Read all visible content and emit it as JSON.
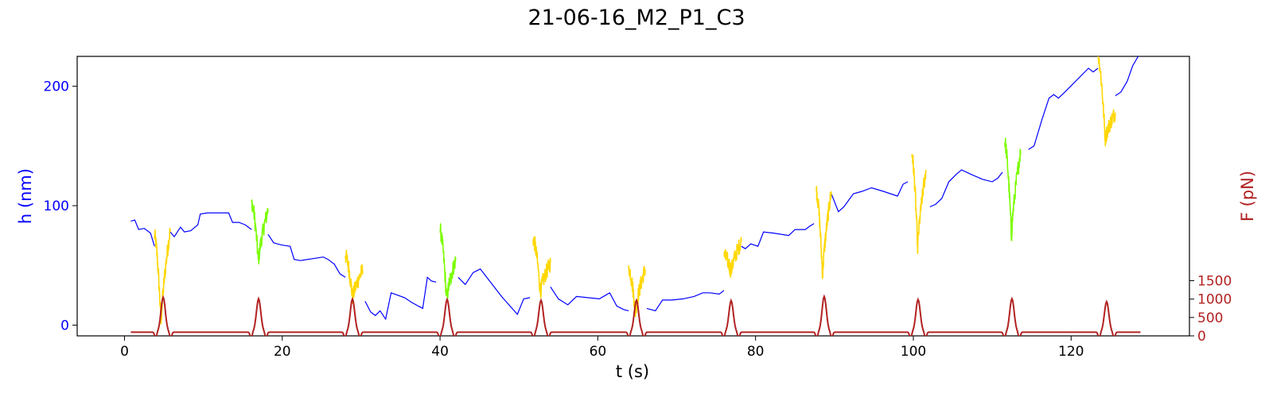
{
  "chart_data": {
    "type": "line",
    "title": "21-06-16_M2_P1_C3",
    "xlabel": "t (s)",
    "ylabel": "h (nm)",
    "y2label": "F (pN)",
    "xlim": [
      -6,
      135
    ],
    "ylim": [
      -9,
      225
    ],
    "y2lim": [
      0,
      7600
    ],
    "xticks": [
      0,
      20,
      40,
      60,
      80,
      100,
      120
    ],
    "yticks": [
      0,
      100,
      200
    ],
    "y2ticks": [
      0,
      500,
      1000,
      1500
    ],
    "grid": false,
    "colors": {
      "height_axis": "#0000ff",
      "force_axis": "#b22222",
      "baseline": "#0000ff",
      "yellow": "#ffd700",
      "green": "#7cfc00",
      "force": "#b22222"
    },
    "height_baseline": {
      "name": "h (nm)",
      "points": [
        [
          0.8,
          87
        ],
        [
          1.3,
          88
        ],
        [
          1.8,
          80
        ],
        [
          2.5,
          81
        ],
        [
          3.3,
          77
        ],
        [
          3.8,
          66
        ],
        [
          5.8,
          78
        ],
        [
          6.3,
          74
        ],
        [
          7.1,
          82
        ],
        [
          7.6,
          78
        ],
        [
          8.4,
          79
        ],
        [
          9.3,
          84
        ],
        [
          9.6,
          93
        ],
        [
          10.5,
          94
        ],
        [
          13.2,
          94
        ],
        [
          13.7,
          86
        ],
        [
          14.5,
          86
        ],
        [
          15.3,
          84
        ],
        [
          16.1,
          80
        ],
        [
          18.2,
          76
        ],
        [
          18.9,
          69
        ],
        [
          19.4,
          68
        ],
        [
          20.0,
          67
        ],
        [
          21.0,
          66
        ],
        [
          21.5,
          55
        ],
        [
          22.3,
          54
        ],
        [
          25.2,
          57
        ],
        [
          25.8,
          55
        ],
        [
          26.6,
          51
        ],
        [
          27.3,
          43
        ],
        [
          28.0,
          40
        ],
        [
          29.2,
          37
        ],
        [
          29.7,
          35
        ],
        [
          30.5,
          20
        ],
        [
          31.2,
          11
        ],
        [
          31.8,
          8
        ],
        [
          32.4,
          12
        ],
        [
          33.1,
          5
        ],
        [
          33.8,
          27
        ],
        [
          35.5,
          23
        ],
        [
          36.4,
          19
        ],
        [
          37.8,
          14
        ],
        [
          38.4,
          40
        ],
        [
          38.9,
          37
        ],
        [
          39.5,
          36
        ],
        [
          40.8,
          45
        ],
        [
          41.6,
          43
        ],
        [
          42.3,
          40
        ],
        [
          43.2,
          34
        ],
        [
          44.2,
          44
        ],
        [
          45.1,
          47
        ],
        [
          47.8,
          24
        ],
        [
          49.8,
          9
        ],
        [
          50.6,
          22
        ],
        [
          51.4,
          23
        ],
        [
          52.1,
          30
        ],
        [
          52.8,
          44
        ],
        [
          54.0,
          32
        ],
        [
          55.0,
          22
        ],
        [
          56.2,
          17
        ],
        [
          57.3,
          24
        ],
        [
          60.2,
          22
        ],
        [
          61.5,
          27
        ],
        [
          62.4,
          16
        ],
        [
          63.3,
          13
        ],
        [
          63.9,
          12
        ],
        [
          65.0,
          16
        ],
        [
          66.2,
          14
        ],
        [
          67.3,
          12
        ],
        [
          68.2,
          21
        ],
        [
          69.4,
          21
        ],
        [
          70.8,
          22
        ],
        [
          72.2,
          24
        ],
        [
          73.3,
          27
        ],
        [
          74.2,
          27
        ],
        [
          75.4,
          26
        ],
        [
          76.0,
          29
        ],
        [
          78.2,
          66
        ],
        [
          78.7,
          64
        ],
        [
          79.4,
          68
        ],
        [
          80.3,
          66
        ],
        [
          81.0,
          78
        ],
        [
          82.3,
          77
        ],
        [
          84.2,
          75
        ],
        [
          85.0,
          80
        ],
        [
          86.3,
          80
        ],
        [
          86.9,
          83
        ],
        [
          87.4,
          85
        ],
        [
          89.6,
          110
        ],
        [
          90.5,
          95
        ],
        [
          91.2,
          99
        ],
        [
          92.4,
          110
        ],
        [
          93.5,
          112
        ],
        [
          94.7,
          115
        ],
        [
          96.2,
          112
        ],
        [
          98.0,
          108
        ],
        [
          98.7,
          118
        ],
        [
          99.3,
          120
        ],
        [
          99.9,
          117
        ],
        [
          100.6,
          123
        ],
        [
          101.4,
          124
        ],
        [
          102.1,
          99
        ],
        [
          102.8,
          101
        ],
        [
          103.6,
          106
        ],
        [
          104.5,
          120
        ],
        [
          105.4,
          126
        ],
        [
          106.1,
          130
        ],
        [
          107.4,
          126
        ],
        [
          108.8,
          122
        ],
        [
          110.0,
          120
        ],
        [
          110.7,
          123
        ],
        [
          111.3,
          128
        ],
        [
          112.0,
          133
        ],
        [
          112.7,
          138
        ],
        [
          113.5,
          144
        ],
        [
          114.6,
          147
        ],
        [
          115.3,
          150
        ],
        [
          116.3,
          172
        ],
        [
          117.2,
          190
        ],
        [
          117.8,
          193
        ],
        [
          118.4,
          190
        ],
        [
          119.2,
          195
        ],
        [
          122.2,
          215
        ],
        [
          122.8,
          212
        ],
        [
          123.4,
          215
        ],
        [
          124.0,
          228
        ],
        [
          125.6,
          192
        ],
        [
          126.3,
          195
        ],
        [
          127.1,
          204
        ],
        [
          127.8,
          217
        ],
        [
          128.5,
          225
        ],
        [
          129.2,
          228
        ]
      ]
    },
    "colored_segments": [
      {
        "color": "yellow",
        "t_start": 3.8,
        "t_end": 5.8,
        "h_start": 75,
        "h_min": 0,
        "h_end": 80
      },
      {
        "color": "green",
        "t_start": 16.1,
        "t_end": 18.2,
        "h_start": 103,
        "h_min": 52,
        "h_end": 97
      },
      {
        "color": "yellow",
        "t_start": 28.0,
        "t_end": 30.2,
        "h_start": 58,
        "h_min": 22,
        "h_end": 46
      },
      {
        "color": "green",
        "t_start": 40.0,
        "t_end": 42.0,
        "h_start": 79,
        "h_min": 20,
        "h_end": 55
      },
      {
        "color": "yellow",
        "t_start": 51.8,
        "t_end": 54.0,
        "h_start": 72,
        "h_min": 27,
        "h_end": 52
      },
      {
        "color": "yellow",
        "t_start": 63.9,
        "t_end": 66.0,
        "h_start": 48,
        "h_min": 10,
        "h_end": 47
      },
      {
        "color": "yellow",
        "t_start": 76.0,
        "t_end": 78.2,
        "h_start": 58,
        "h_min": 45,
        "h_end": 70
      },
      {
        "color": "yellow",
        "t_start": 87.7,
        "t_end": 89.6,
        "h_start": 112,
        "h_min": 40,
        "h_end": 112
      },
      {
        "color": "yellow",
        "t_start": 99.8,
        "t_end": 101.6,
        "h_start": 143,
        "h_min": 63,
        "h_end": 130
      },
      {
        "color": "green",
        "t_start": 111.6,
        "t_end": 113.6,
        "h_start": 153,
        "h_min": 73,
        "h_end": 146
      },
      {
        "color": "yellow",
        "t_start": 123.4,
        "t_end": 125.6,
        "h_start": 225,
        "h_min": 155,
        "h_end": 178
      }
    ],
    "force_series": {
      "name": "F (pN)",
      "baseline": 100,
      "start": 0.8,
      "end": 128.8,
      "peaks": [
        {
          "t": 4.9,
          "value": 1050
        },
        {
          "t": 17.0,
          "value": 1010
        },
        {
          "t": 28.9,
          "value": 1000
        },
        {
          "t": 40.9,
          "value": 990
        },
        {
          "t": 52.8,
          "value": 970
        },
        {
          "t": 64.9,
          "value": 970
        },
        {
          "t": 76.9,
          "value": 960
        },
        {
          "t": 88.7,
          "value": 1070
        },
        {
          "t": 100.6,
          "value": 990
        },
        {
          "t": 112.5,
          "value": 1010
        },
        {
          "t": 124.5,
          "value": 930
        }
      ]
    }
  }
}
